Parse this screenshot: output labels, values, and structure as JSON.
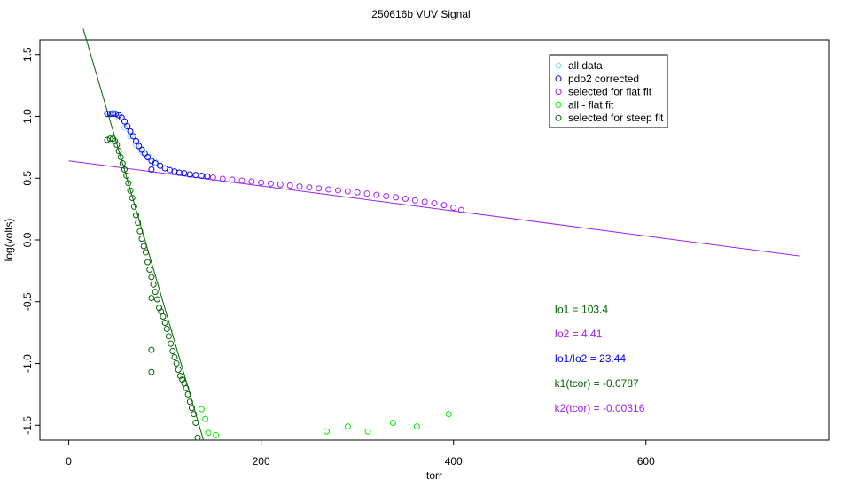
{
  "chart_data": {
    "type": "scatter",
    "title": "250616b   VUV Signal",
    "xlabel": "torr",
    "ylabel": "log(volts)",
    "xlim": [
      -30,
      790
    ],
    "ylim": [
      -1.62,
      1.62
    ],
    "x_ticks": [
      0,
      200,
      400,
      600
    ],
    "y_ticks": [
      -1.5,
      -1.0,
      -0.5,
      0.0,
      0.5,
      1.0,
      1.5
    ],
    "x_tick_labels": [
      "0",
      "200",
      "400",
      "600"
    ],
    "y_tick_labels": [
      "-1.5",
      "-1.0",
      "-0.5",
      "0.0",
      "0.5",
      "1.0",
      "1.5"
    ],
    "grid": false,
    "legend_position": "top-right",
    "legend": [
      {
        "label": "all data",
        "color": "#87d6e8"
      },
      {
        "label": "pdo2 corrected",
        "color": "#0000ff"
      },
      {
        "label": "selected for flat fit",
        "color": "#a020f0"
      },
      {
        "label": "all - flat fit",
        "color": "#00ee00"
      },
      {
        "label": "selected for steep fit",
        "color": "#006400"
      }
    ],
    "series": [
      {
        "name": "all data",
        "color": "#87d6e8",
        "marker": "circle-open",
        "x": [
          41,
          46,
          52,
          58,
          64,
          70,
          76,
          84,
          90
        ],
        "y": [
          1.02,
          1.03,
          0.99,
          0.91,
          0.84,
          0.77,
          0.71,
          0.67,
          0.63
        ]
      },
      {
        "name": "pdo2 corrected",
        "color": "#0000ff",
        "marker": "circle-open",
        "x": [
          40,
          43,
          46,
          49,
          52,
          55,
          58,
          61,
          64,
          67,
          70,
          73,
          76,
          79,
          82,
          86,
          90,
          95,
          100,
          105,
          110,
          115,
          120,
          126,
          132,
          138,
          144,
          86
        ],
        "y": [
          1.02,
          1.02,
          1.02,
          1.02,
          1.01,
          0.99,
          0.96,
          0.92,
          0.88,
          0.84,
          0.8,
          0.76,
          0.73,
          0.7,
          0.67,
          0.64,
          0.62,
          0.6,
          0.58,
          0.565,
          0.555,
          0.545,
          0.54,
          0.53,
          0.525,
          0.52,
          0.515,
          0.57
        ]
      },
      {
        "name": "selected for flat fit",
        "color": "#a020f0",
        "marker": "circle-open",
        "x": [
          150,
          160,
          170,
          180,
          190,
          200,
          210,
          220,
          230,
          240,
          250,
          260,
          270,
          280,
          290,
          300,
          310,
          320,
          330,
          340,
          350,
          360,
          370,
          380,
          390,
          400,
          408
        ],
        "y": [
          0.505,
          0.495,
          0.488,
          0.48,
          0.473,
          0.465,
          0.457,
          0.449,
          0.441,
          0.433,
          0.425,
          0.417,
          0.409,
          0.401,
          0.393,
          0.385,
          0.375,
          0.365,
          0.355,
          0.345,
          0.333,
          0.321,
          0.309,
          0.297,
          0.282,
          0.262,
          0.242
        ]
      },
      {
        "name": "all - flat fit",
        "color": "#00ee00",
        "marker": "circle-open",
        "x": [
          138,
          142,
          145,
          153,
          268,
          290,
          311,
          337,
          362,
          395
        ],
        "y": [
          -1.37,
          -1.45,
          -1.56,
          -1.58,
          -1.55,
          -1.51,
          -1.55,
          -1.48,
          -1.51,
          -1.41
        ]
      },
      {
        "name": "selected for steep fit",
        "color": "#006400",
        "marker": "circle-open",
        "x": [
          40,
          43,
          46,
          48,
          50,
          52,
          54,
          56,
          58,
          60,
          62,
          64,
          66,
          68,
          70,
          72,
          74,
          76,
          78,
          80,
          82,
          84,
          86,
          88,
          90,
          92,
          94,
          96,
          98,
          100,
          102,
          104,
          106,
          108,
          110,
          112,
          114,
          116,
          118,
          120,
          122,
          124,
          126,
          128,
          130,
          132,
          134,
          86,
          86,
          86
        ],
        "y": [
          0.81,
          0.82,
          0.82,
          0.8,
          0.77,
          0.72,
          0.67,
          0.62,
          0.57,
          0.52,
          0.46,
          0.4,
          0.34,
          0.27,
          0.2,
          0.14,
          0.07,
          0.01,
          -0.05,
          -0.1,
          -0.18,
          -0.24,
          -0.3,
          -0.36,
          -0.42,
          -0.48,
          -0.55,
          -0.58,
          -0.62,
          -0.67,
          -0.72,
          -0.78,
          -0.84,
          -0.9,
          -0.95,
          -1.0,
          -1.05,
          -1.1,
          -1.13,
          -1.16,
          -1.2,
          -1.25,
          -1.31,
          -1.36,
          -1.41,
          -1.48,
          -1.6,
          -0.47,
          -0.89,
          -1.07
        ]
      }
    ],
    "fit_lines": [
      {
        "name": "flat fit",
        "color": "#a020f0",
        "x": [
          0,
          760
        ],
        "y": [
          0.64,
          -0.13
        ]
      },
      {
        "name": "steep fit",
        "color": "#006400",
        "x": [
          15,
          140
        ],
        "y": [
          1.71,
          -1.62
        ]
      }
    ],
    "annotations": [
      {
        "text": "Io1 =  103.4",
        "color": "#006400",
        "x": 505,
        "y": -0.59
      },
      {
        "text": "Io2 =  4.41",
        "color": "#a020f0",
        "x": 505,
        "y": -0.79
      },
      {
        "text": "Io1/Io2 =  23.44",
        "color": "#0000ff",
        "x": 505,
        "y": -0.99
      },
      {
        "text": "k1(tcor) =  -0.0787",
        "color": "#006400",
        "x": 505,
        "y": -1.19
      },
      {
        "text": "k2(tcor) =  -0.00316",
        "color": "#a020f0",
        "x": 505,
        "y": -1.39
      }
    ]
  }
}
